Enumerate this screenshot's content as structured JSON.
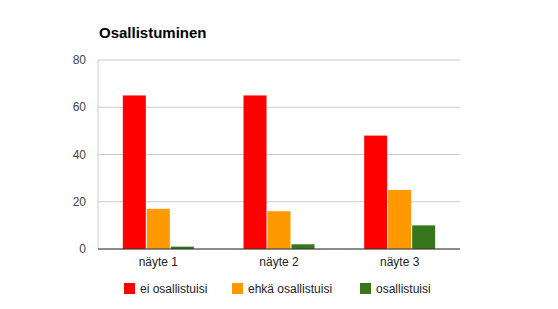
{
  "chart_data": {
    "type": "bar",
    "title": "Osallistuminen",
    "categories": [
      "näyte 1",
      "näyte 2",
      "näyte 3"
    ],
    "series": [
      {
        "name": "ei osallistuisi",
        "color": "#ff0000",
        "values": [
          65,
          65,
          48
        ]
      },
      {
        "name": "ehkä osallistuisi",
        "color": "#ff9900",
        "values": [
          17,
          16,
          25
        ]
      },
      {
        "name": "osallistuisi",
        "color": "#38761d",
        "values": [
          1,
          2,
          10
        ]
      }
    ],
    "ylim": [
      0,
      80
    ],
    "yticks": [
      0,
      20,
      40,
      60,
      80
    ],
    "grid": true,
    "legend": "bottom"
  }
}
